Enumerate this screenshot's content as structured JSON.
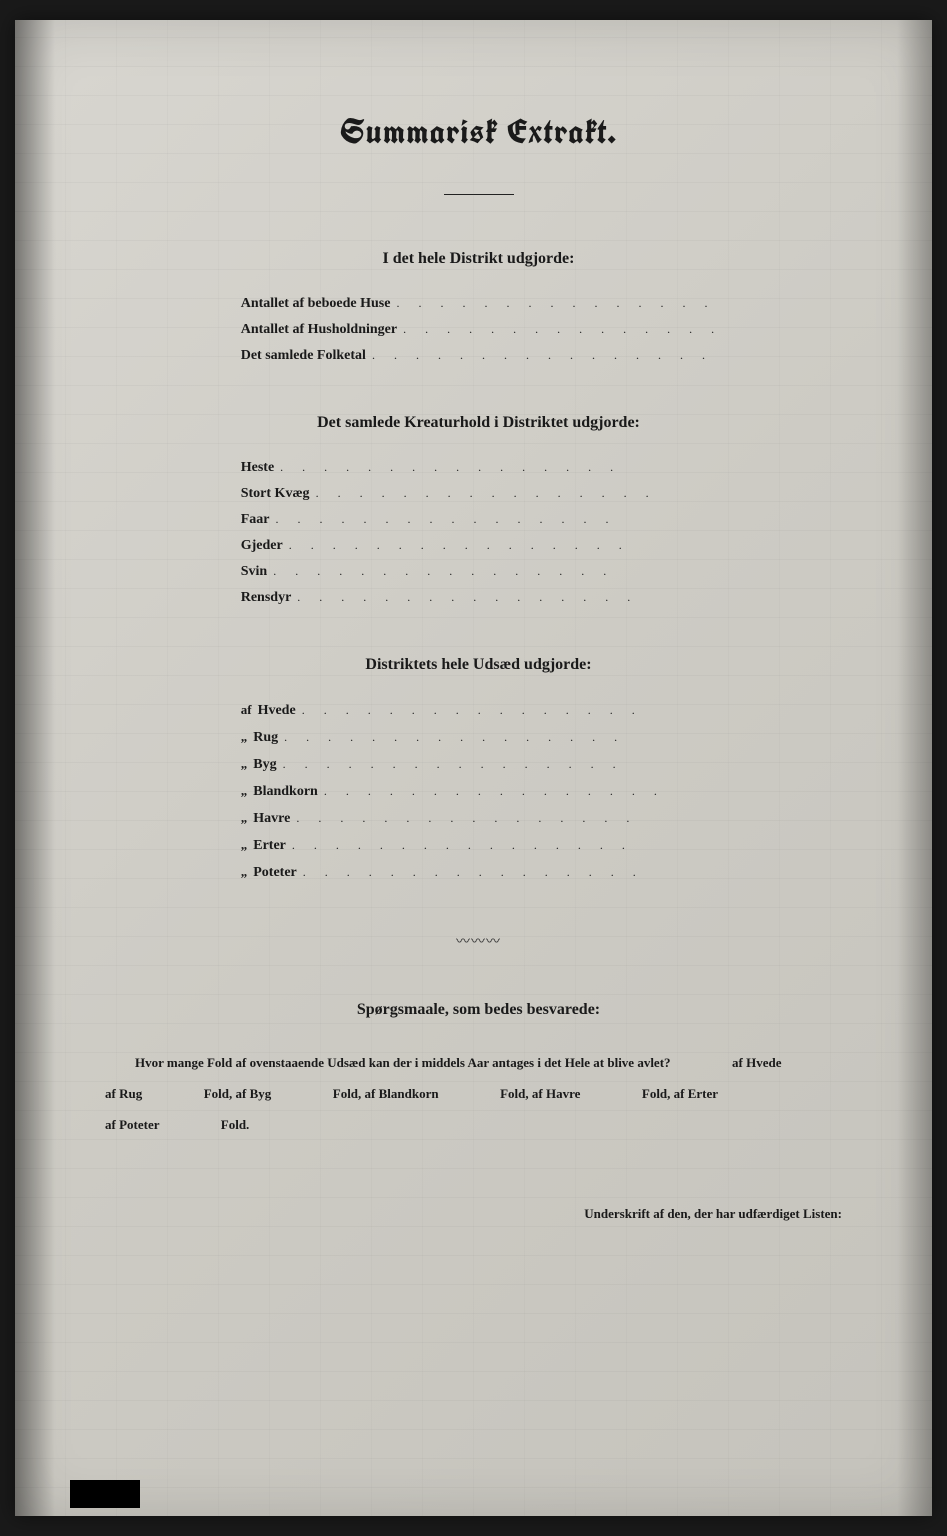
{
  "title": "Summarisk Extrakt.",
  "section1": {
    "heading": "I det hele Distrikt udgjorde:",
    "rows": [
      {
        "label": "Antallet af beboede Huse"
      },
      {
        "label": "Antallet af Husholdninger"
      },
      {
        "label": "Det samlede Folketal"
      }
    ]
  },
  "section2": {
    "heading": "Det samlede Kreaturhold i Distriktet udgjorde:",
    "rows": [
      {
        "label": "Heste"
      },
      {
        "label": "Stort Kvæg"
      },
      {
        "label": "Faar"
      },
      {
        "label": "Gjeder"
      },
      {
        "label": "Svin"
      },
      {
        "label": "Rensdyr"
      }
    ]
  },
  "section3": {
    "heading": "Distriktets hele Udsæd udgjorde:",
    "rows": [
      {
        "prefix": "af",
        "label": "Hvede"
      },
      {
        "prefix": "„",
        "label": "Rug"
      },
      {
        "prefix": "„",
        "label": "Byg"
      },
      {
        "prefix": "„",
        "label": "Blandkorn"
      },
      {
        "prefix": "„",
        "label": "Havre"
      },
      {
        "prefix": "„",
        "label": "Erter"
      },
      {
        "prefix": "„",
        "label": "Poteter"
      }
    ]
  },
  "section4": {
    "heading": "Spørgsmaale, som bedes besvarede:",
    "q_lead": "Hvor mange Fold af ovenstaaende Udsæd kan der i middels Aar antages i det Hele at blive avlet?",
    "parts": [
      "af Hvede",
      "af Rug",
      "Fold, af Byg",
      "Fold, af Blandkorn",
      "Fold, af Havre",
      "Fold, af Erter",
      "af Poteter",
      "Fold."
    ]
  },
  "signature": "Underskrift af den, der har udfærdiget Listen:",
  "colors": {
    "page_bg_light": "#d8d6d0",
    "page_bg_dark": "#c5c3bc",
    "text": "#1a1a1a",
    "outer_bg": "#1a1a1a"
  },
  "dots_string": ".  .  .  .  .  .  .  .  .  .  .  .  .  .  .  ."
}
